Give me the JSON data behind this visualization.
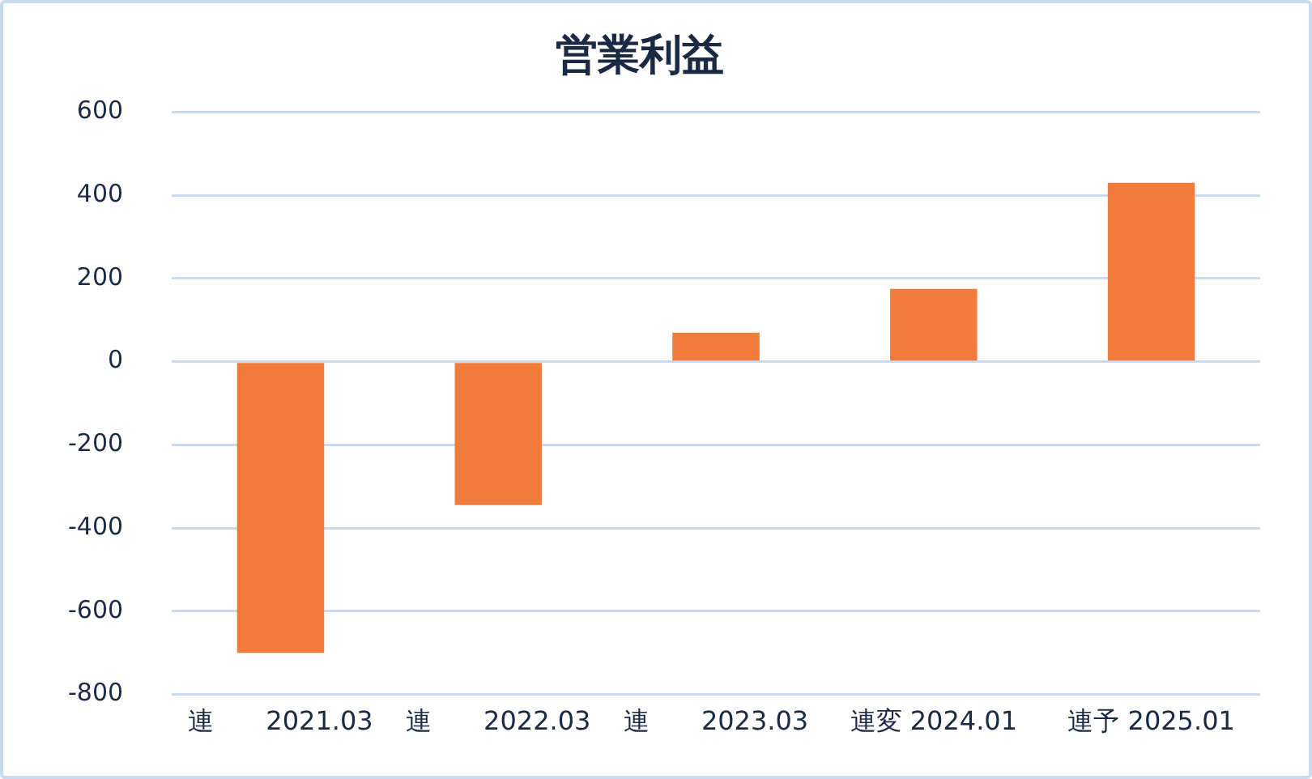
{
  "chart_data": {
    "type": "bar",
    "title": "営業利益",
    "categories": [
      "連　　2021.03",
      "連　　2022.03",
      "連　　2023.03",
      "連変 2024.01",
      "連予 2025.01"
    ],
    "values": [
      -700,
      -345,
      70,
      175,
      430
    ],
    "color": "#ef7b3c",
    "ylim": [
      -800,
      600
    ],
    "yticks": [
      -800,
      -600,
      -400,
      -200,
      0,
      200,
      400,
      600
    ],
    "grid": "y"
  }
}
